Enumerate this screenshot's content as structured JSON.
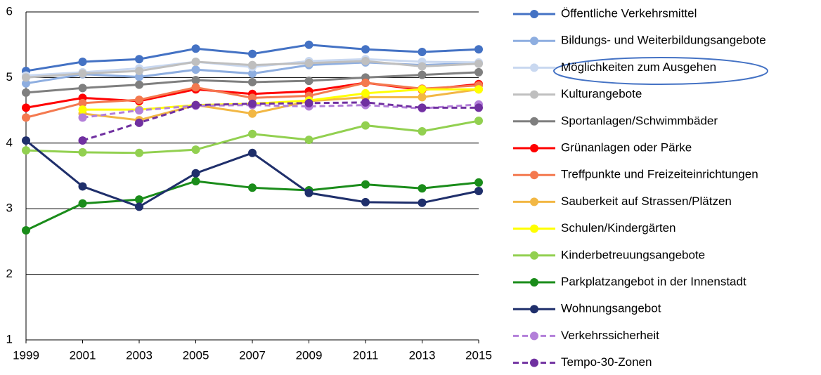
{
  "chart_data": {
    "type": "line",
    "x": [
      1999,
      2001,
      2003,
      2005,
      2007,
      2009,
      2011,
      2013,
      2015
    ],
    "xlim": [
      1999,
      2015
    ],
    "xticks": [
      1999,
      2001,
      2003,
      2005,
      2007,
      2009,
      2011,
      2013,
      2015
    ],
    "ylim": [
      1,
      6
    ],
    "yticks": [
      1,
      2,
      3,
      4,
      5,
      6
    ],
    "grid": true,
    "legend": "right",
    "series": [
      {
        "name": "Öffentliche Verkehrsmittel",
        "color": "#4472c4",
        "values": [
          5.1,
          5.24,
          5.28,
          5.44,
          5.36,
          5.5,
          5.43,
          5.39,
          5.43
        ]
      },
      {
        "name": "Bildungs- und Weiterbildungsangebote",
        "color": "#8eaee0",
        "values": [
          4.91,
          5.05,
          5.01,
          5.12,
          5.06,
          5.19,
          5.23,
          5.19,
          5.22
        ]
      },
      {
        "name": "Möglichkeiten zum Ausgehen",
        "color": "#c9d8f0",
        "values": [
          5.03,
          5.08,
          5.14,
          5.24,
          5.16,
          5.25,
          5.28,
          5.24,
          5.23
        ]
      },
      {
        "name": "Kulturangebote",
        "color": "#bfbfbf",
        "values": [
          5.0,
          5.06,
          5.1,
          5.24,
          5.19,
          5.22,
          5.25,
          5.17,
          5.21
        ]
      },
      {
        "name": "Sportanlagen/Schwimmbäder",
        "color": "#7f7f7f",
        "values": [
          4.77,
          4.84,
          4.89,
          4.96,
          4.93,
          4.95,
          5.0,
          5.04,
          5.08
        ]
      },
      {
        "name": "Grünanlagen oder Pärke",
        "color": "#ff0000",
        "values": [
          4.54,
          4.69,
          4.64,
          4.82,
          4.75,
          4.79,
          4.92,
          4.81,
          4.9
        ]
      },
      {
        "name": "Treffpunkte und Freizeiteinrichtungen",
        "color": "#f4794f",
        "values": [
          4.39,
          4.61,
          4.66,
          4.85,
          4.69,
          4.72,
          4.92,
          4.83,
          4.88
        ]
      },
      {
        "name": "Sauberkeit auf Strassen/Plätzen",
        "color": "#f2b744",
        "values": [
          null,
          4.45,
          4.35,
          4.58,
          4.45,
          4.64,
          4.7,
          4.7,
          4.82
        ]
      },
      {
        "name": "Schulen/Kindergärten",
        "color": "#ffff00",
        "values": [
          null,
          4.51,
          4.51,
          4.58,
          4.6,
          4.65,
          4.76,
          4.82,
          4.82
        ]
      },
      {
        "name": "Kinderbetreuungsangebote",
        "color": "#92d050",
        "values": [
          3.89,
          3.86,
          3.85,
          3.9,
          4.14,
          4.05,
          4.27,
          4.18,
          4.34
        ]
      },
      {
        "name": "Parkplatzangebot in der Innenstadt",
        "color": "#1a8c1a",
        "values": [
          2.67,
          3.08,
          3.14,
          3.42,
          3.32,
          3.28,
          3.37,
          3.31,
          3.4
        ]
      },
      {
        "name": "Wohnungsangebot",
        "color": "#1f2f6b",
        "values": [
          4.04,
          3.34,
          3.03,
          3.54,
          3.85,
          3.24,
          3.1,
          3.09,
          3.27
        ]
      },
      {
        "name": "Verkehrssicherheit",
        "color": "#b37fd9",
        "dashed": true,
        "values": [
          null,
          4.39,
          4.5,
          4.57,
          4.58,
          4.56,
          4.58,
          4.53,
          4.59
        ]
      },
      {
        "name": "Tempo-30-Zonen",
        "color": "#7030a0",
        "dashed": true,
        "values": [
          null,
          4.04,
          4.31,
          4.58,
          4.6,
          4.61,
          4.62,
          4.54,
          4.54
        ]
      }
    ]
  }
}
